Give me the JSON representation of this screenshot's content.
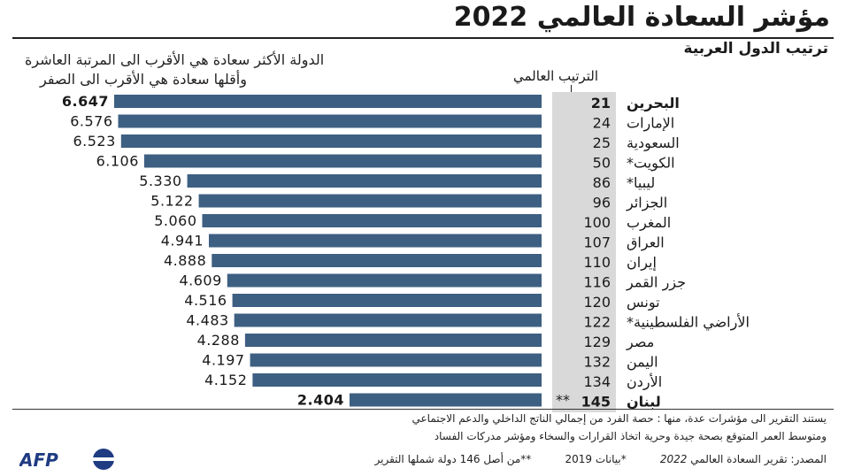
{
  "header": {
    "title": "مؤشر السعادة العالمي 2022",
    "subtitle": "ترتيب الدول العربية"
  },
  "notes": {
    "line1": "الدولة الأكثر سعادة هي الأقرب الى المرتبة العاشرة",
    "line2": "وأقلها سعادة هي الأقرب الى الصفر"
  },
  "rank_header": "الترتيب العالمي",
  "colors": {
    "bar": "#3d5f82",
    "rank_band": "#d9d9d9",
    "text": "#1a1a1a"
  },
  "chart_data": {
    "type": "bar",
    "orientation": "horizontal",
    "title": "مؤشر السعادة العالمي 2022",
    "subtitle": "ترتيب الدول العربية",
    "xlim": [
      2.404,
      6.647
    ],
    "categories": [
      "البحرين",
      "الإمارات",
      "السعودية",
      "الكويت*",
      "ليبيا*",
      "الجزائر",
      "المغرب",
      "العراق",
      "إيران",
      "جزر القمر",
      "تونس",
      "الأراضي الفلسطينية*",
      "مصر",
      "اليمن",
      "الأردن",
      "لبنان"
    ],
    "values": [
      6.647,
      6.576,
      6.523,
      6.106,
      5.33,
      5.122,
      5.06,
      4.941,
      4.888,
      4.609,
      4.516,
      4.483,
      4.288,
      4.197,
      4.152,
      2.404
    ],
    "value_labels": [
      "6.647",
      "6.576",
      "6.523",
      "6.106",
      "5.330",
      "5.122",
      "5.060",
      "4.941",
      "4.888",
      "4.609",
      "4.516",
      "4.483",
      "4.288",
      "4.197",
      "4.152",
      "2.404"
    ],
    "ranks": [
      "21",
      "24",
      "25",
      "50",
      "86",
      "96",
      "100",
      "107",
      "110",
      "116",
      "120",
      "122",
      "129",
      "132",
      "134",
      "145"
    ],
    "rank_marks": [
      "",
      "",
      "",
      "",
      "",
      "",
      "",
      "",
      "",
      "",
      "",
      "",
      "",
      "",
      "",
      "**"
    ],
    "bold": [
      true,
      false,
      false,
      false,
      false,
      false,
      false,
      false,
      false,
      false,
      false,
      false,
      false,
      false,
      false,
      true
    ]
  },
  "footer": {
    "line1": "يستند التقرير الى مؤشرات عدة، منها : حصة الفرد من إجمالي الناتج الداخلي والدعم الاجتماعي",
    "line2": "ومتوسط العمر المتوقع بصحة جيدة وحرية اتخاذ القرارات والسخاء ومؤشر مدركات الفساد",
    "source_prefix": "المصدر: تقرير السعادة العالمي",
    "source_year": "2022",
    "data_note": "*بيانات 2019",
    "of_note": "**من أصل 146 دولة شملها التقرير"
  },
  "logo": {
    "text": "AFP",
    "name": "afp-logo"
  }
}
